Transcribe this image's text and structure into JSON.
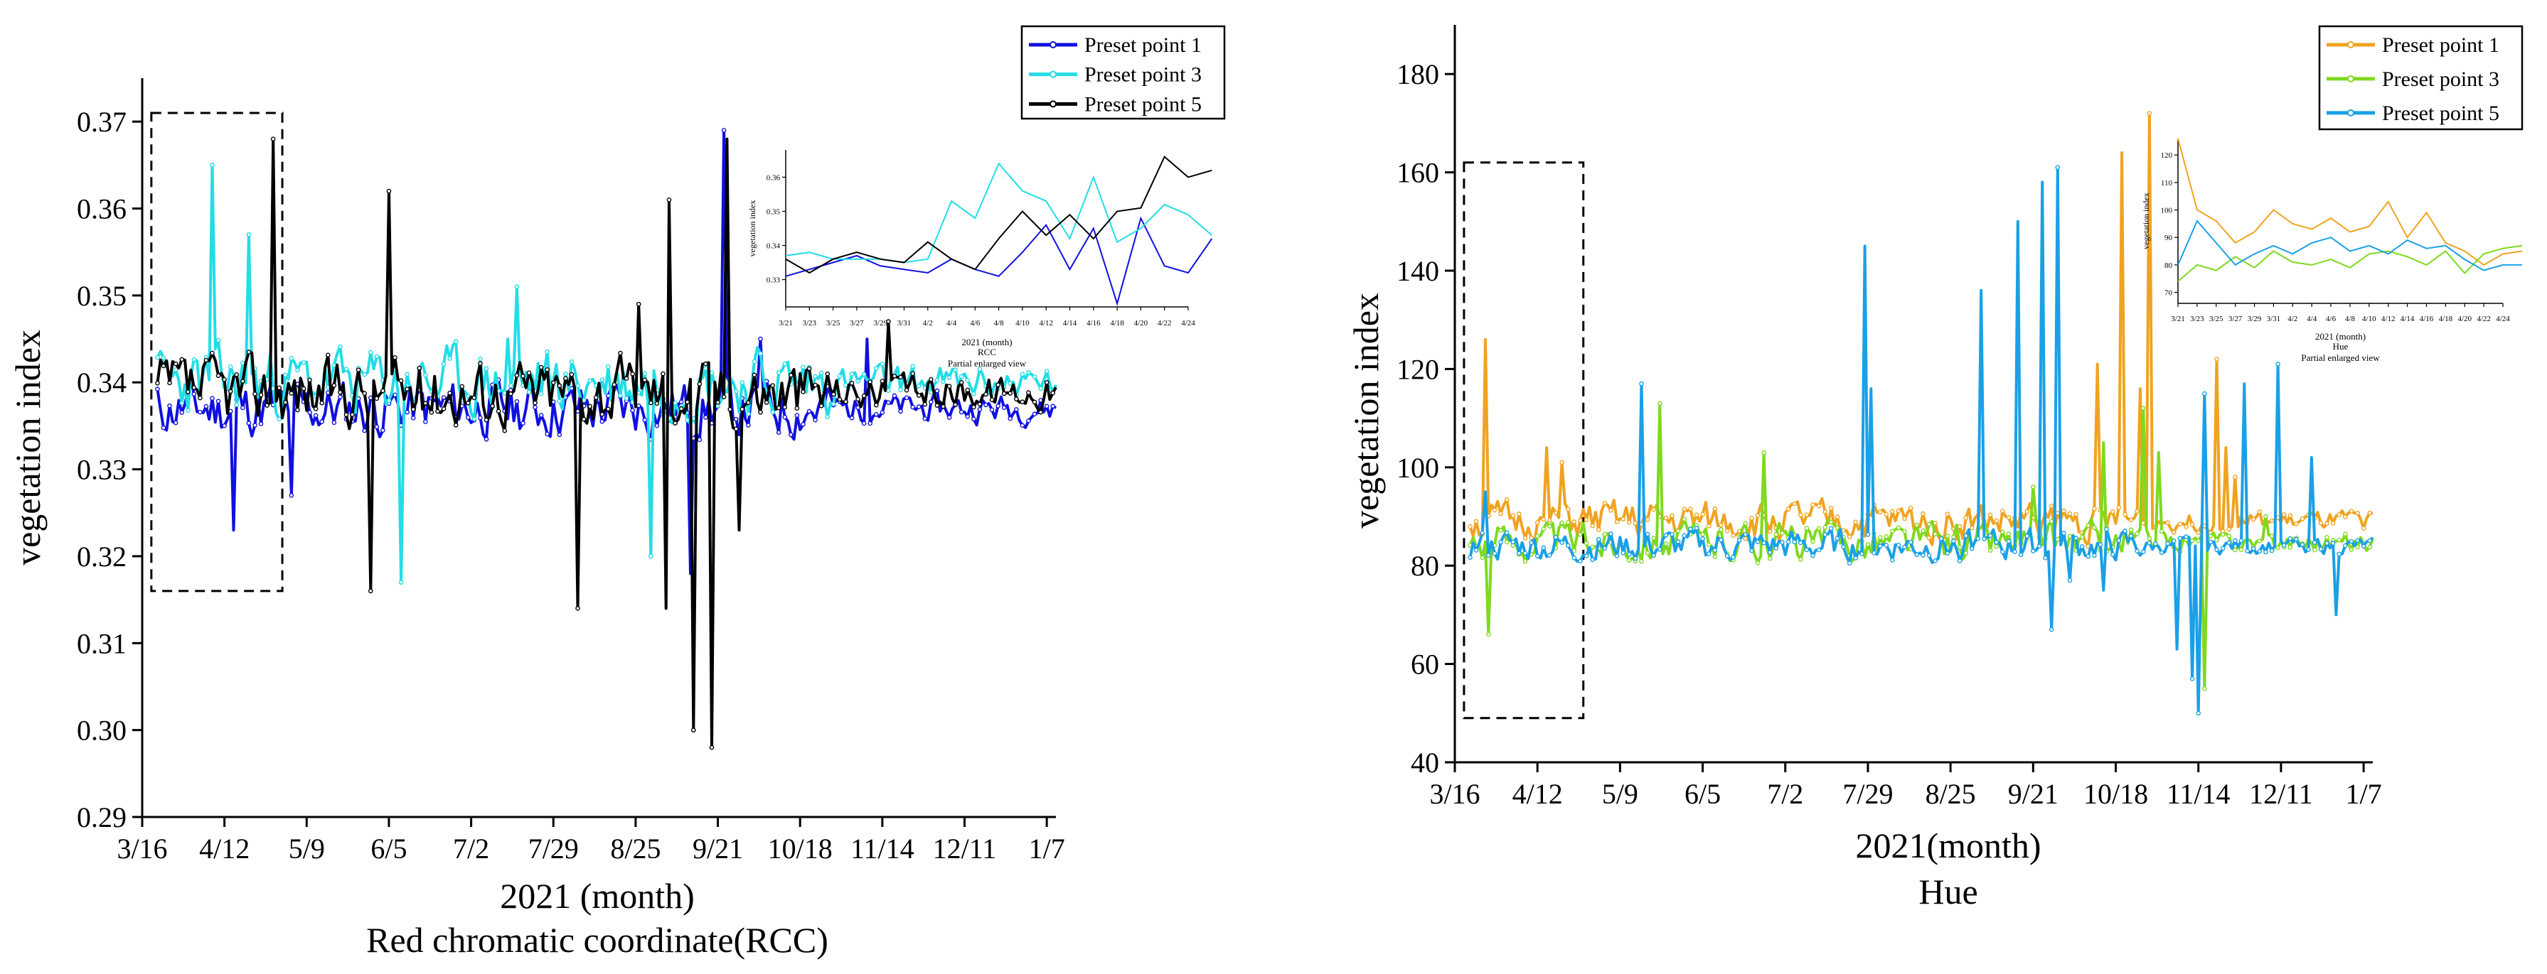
{
  "chart_data": [
    {
      "id": "rcc",
      "type": "line",
      "ylabel": "vegetation index",
      "xlabel": "2021 (month)",
      "subtitle": "Red chromatic coordinate(RCC)",
      "xlim": [
        0,
        300
      ],
      "ylim": [
        0.29,
        0.375
      ],
      "yticks": [
        0.29,
        0.3,
        0.31,
        0.32,
        0.33,
        0.34,
        0.35,
        0.36,
        0.37
      ],
      "yticklabels": [
        "0.29",
        "0.30",
        "0.31",
        "0.32",
        "0.33",
        "0.34",
        "0.35",
        "0.36",
        "0.37"
      ],
      "xticks": [
        0,
        27,
        54,
        81,
        108,
        135,
        162,
        189,
        216,
        243,
        270,
        297
      ],
      "xticklabels": [
        "3/16",
        "4/12",
        "5/9",
        "6/5",
        "7/2",
        "7/29",
        "8/25",
        "9/21",
        "10/18",
        "11/14",
        "12/11",
        "1/7"
      ],
      "dashed_box": {
        "x": [
          3,
          46
        ],
        "y": [
          0.316,
          0.371
        ]
      },
      "legend": {
        "position": "top-right",
        "entries": [
          "Preset point 1",
          "Preset point 3",
          "Preset point 5"
        ]
      },
      "series": [
        {
          "name": "Preset point 1",
          "color": "#1010e0",
          "seed": 11,
          "base": 0.337,
          "noise": 0.005,
          "spikes": [
            [
              25,
              0.323
            ],
            [
              44,
              0.327
            ],
            [
              186,
              0.369
            ],
            [
              198,
              0.345
            ],
            [
              233,
              0.345
            ],
            [
              175,
              0.318
            ]
          ]
        },
        {
          "name": "Preset point 3",
          "color": "#22dde6",
          "seed": 23,
          "base": 0.34,
          "noise": 0.006,
          "spikes": [
            [
              18,
              0.365
            ],
            [
              30,
              0.357
            ],
            [
              80,
              0.317
            ],
            [
              118,
              0.351
            ],
            [
              162,
              0.32
            ],
            [
              115,
              0.345
            ]
          ]
        },
        {
          "name": "Preset point 5",
          "color": "#000000",
          "seed": 37,
          "base": 0.339,
          "noise": 0.006,
          "spikes": [
            [
              38,
              0.368
            ],
            [
              70,
              0.316
            ],
            [
              76,
              0.362
            ],
            [
              138,
              0.314
            ],
            [
              158,
              0.349
            ],
            [
              167,
              0.314
            ],
            [
              168,
              0.361
            ],
            [
              176,
              0.3
            ],
            [
              182,
              0.298
            ],
            [
              187,
              0.368
            ],
            [
              191,
              0.323
            ],
            [
              240,
              0.347
            ]
          ]
        }
      ],
      "inset": {
        "ylabel": "vegetation index",
        "xlabel": "2021 (month)",
        "title": "RCC",
        "caption": "Partial enlarged view",
        "xticklabels": [
          "3/21",
          "3/23",
          "3/25",
          "3/27",
          "3/29",
          "3/31",
          "4/2",
          "4/4",
          "4/6",
          "4/8",
          "4/10",
          "4/12",
          "4/14",
          "4/16",
          "4/18",
          "4/20",
          "4/22",
          "4/24"
        ],
        "yticks": [
          0.33,
          0.34,
          0.35,
          0.36
        ],
        "yticklabels": [
          "0.33",
          "0.34",
          "0.35",
          "0.36"
        ],
        "ylim": [
          0.322,
          0.368
        ],
        "x": [
          0,
          2,
          4,
          6,
          8,
          10,
          12,
          14,
          16,
          18,
          20,
          22,
          24,
          26,
          28,
          30,
          32,
          34,
          36
        ],
        "series": [
          {
            "name": "Preset point 1",
            "color": "#1010e0",
            "values": [
              0.331,
              0.333,
              0.335,
              0.337,
              0.334,
              0.333,
              0.332,
              0.336,
              0.333,
              0.331,
              0.338,
              0.346,
              0.333,
              0.345,
              0.323,
              0.348,
              0.334,
              0.332,
              0.342
            ]
          },
          {
            "name": "Preset point 3",
            "color": "#22dde6",
            "values": [
              0.337,
              0.338,
              0.336,
              0.336,
              0.336,
              0.335,
              0.336,
              0.353,
              0.348,
              0.364,
              0.356,
              0.353,
              0.342,
              0.36,
              0.341,
              0.345,
              0.352,
              0.349,
              0.343
            ]
          },
          {
            "name": "Preset point 5",
            "color": "#000000",
            "values": [
              0.336,
              0.332,
              0.336,
              0.338,
              0.336,
              0.335,
              0.341,
              0.336,
              0.333,
              0.342,
              0.35,
              0.343,
              0.349,
              0.342,
              0.35,
              0.351,
              0.366,
              0.36,
              0.362
            ]
          }
        ]
      }
    },
    {
      "id": "hue",
      "type": "line",
      "ylabel": "vegetation index",
      "xlabel": "2021(month)",
      "subtitle": "Hue",
      "xlim": [
        0,
        300
      ],
      "ylim": [
        40,
        190
      ],
      "yticks": [
        40,
        60,
        80,
        100,
        120,
        140,
        160,
        180
      ],
      "yticklabels": [
        "40",
        "60",
        "80",
        "100",
        "120",
        "140",
        "160",
        "180"
      ],
      "xticks": [
        0,
        27,
        54,
        81,
        108,
        135,
        162,
        189,
        216,
        243,
        270,
        297
      ],
      "xticklabels": [
        "3/16",
        "4/12",
        "5/9",
        "6/5",
        "7/2",
        "7/29",
        "8/25",
        "9/21",
        "10/18",
        "11/14",
        "12/11",
        "1/7"
      ],
      "dashed_box": {
        "x": [
          3,
          42
        ],
        "y": [
          49,
          162
        ]
      },
      "legend": {
        "position": "top-right",
        "entries": [
          "Preset point 1",
          "Preset point 3",
          "Preset point 5"
        ]
      },
      "series": [
        {
          "name": "Preset point 1",
          "color": "#f0a320",
          "seed": 51,
          "base": 89,
          "noise": 6,
          "spikes": [
            [
              5,
              126
            ],
            [
              25,
              104
            ],
            [
              30,
              101
            ],
            [
              213,
              164
            ],
            [
              219,
              116
            ],
            [
              222,
              172
            ],
            [
              244,
              122
            ],
            [
              247,
              104
            ],
            [
              250,
              98
            ],
            [
              205,
              121
            ]
          ]
        },
        {
          "name": "Preset point 3",
          "color": "#7fd91e",
          "seed": 63,
          "base": 85,
          "noise": 6,
          "spikes": [
            [
              6,
              66
            ],
            [
              62,
              113
            ],
            [
              96,
              103
            ],
            [
              184,
              96
            ],
            [
              207,
              105
            ],
            [
              220,
              112
            ],
            [
              225,
              103
            ],
            [
              240,
              55
            ],
            [
              260,
              90
            ]
          ]
        },
        {
          "name": "Preset point 5",
          "color": "#1aa0e6",
          "seed": 77,
          "base": 84,
          "noise": 5,
          "spikes": [
            [
              5,
              95
            ],
            [
              56,
              117
            ],
            [
              129,
              145
            ],
            [
              131,
              116
            ],
            [
              167,
              136
            ],
            [
              179,
              150
            ],
            [
              187,
              158
            ],
            [
              192,
              161
            ],
            [
              190,
              67
            ],
            [
              207,
              75
            ],
            [
              236,
              57
            ],
            [
              238,
              50
            ],
            [
              240,
              115
            ],
            [
              253,
              117
            ],
            [
              264,
              121
            ],
            [
              275,
              102
            ],
            [
              283,
              70
            ],
            [
              196,
              77
            ],
            [
              231,
              63
            ]
          ]
        }
      ],
      "inset": {
        "ylabel": "vegetation index",
        "xlabel": "2021 (month)",
        "title": "Hue",
        "caption": "Partial enlarged view",
        "xticklabels": [
          "3/21",
          "3/23",
          "3/25",
          "3/27",
          "3/29",
          "3/31",
          "4/2",
          "4/4",
          "4/6",
          "4/8",
          "4/10",
          "4/12",
          "4/14",
          "4/16",
          "4/18",
          "4/20",
          "4/22",
          "4/24"
        ],
        "yticks": [
          70,
          80,
          90,
          100,
          110,
          120
        ],
        "yticklabels": [
          "70",
          "80",
          "90",
          "100",
          "110",
          "120"
        ],
        "ylim": [
          66,
          126
        ],
        "x": [
          0,
          2,
          4,
          6,
          8,
          10,
          12,
          14,
          16,
          18,
          20,
          22,
          24,
          26,
          28,
          30,
          32,
          34,
          36
        ],
        "series": [
          {
            "name": "Preset point 1",
            "color": "#f0a320",
            "values": [
              126,
              100,
              96,
              88,
              92,
              100,
              95,
              93,
              97,
              92,
              94,
              103,
              90,
              99,
              88,
              85,
              80,
              84,
              85
            ]
          },
          {
            "name": "Preset point 3",
            "color": "#7fd91e",
            "values": [
              74,
              80,
              78,
              83,
              79,
              85,
              81,
              80,
              82,
              79,
              84,
              85,
              83,
              80,
              85,
              77,
              84,
              86,
              87
            ]
          },
          {
            "name": "Preset point 5",
            "color": "#1aa0e6",
            "values": [
              80,
              96,
              88,
              80,
              84,
              87,
              84,
              88,
              90,
              85,
              87,
              84,
              89,
              86,
              87,
              82,
              78,
              80,
              80
            ]
          }
        ]
      }
    }
  ]
}
